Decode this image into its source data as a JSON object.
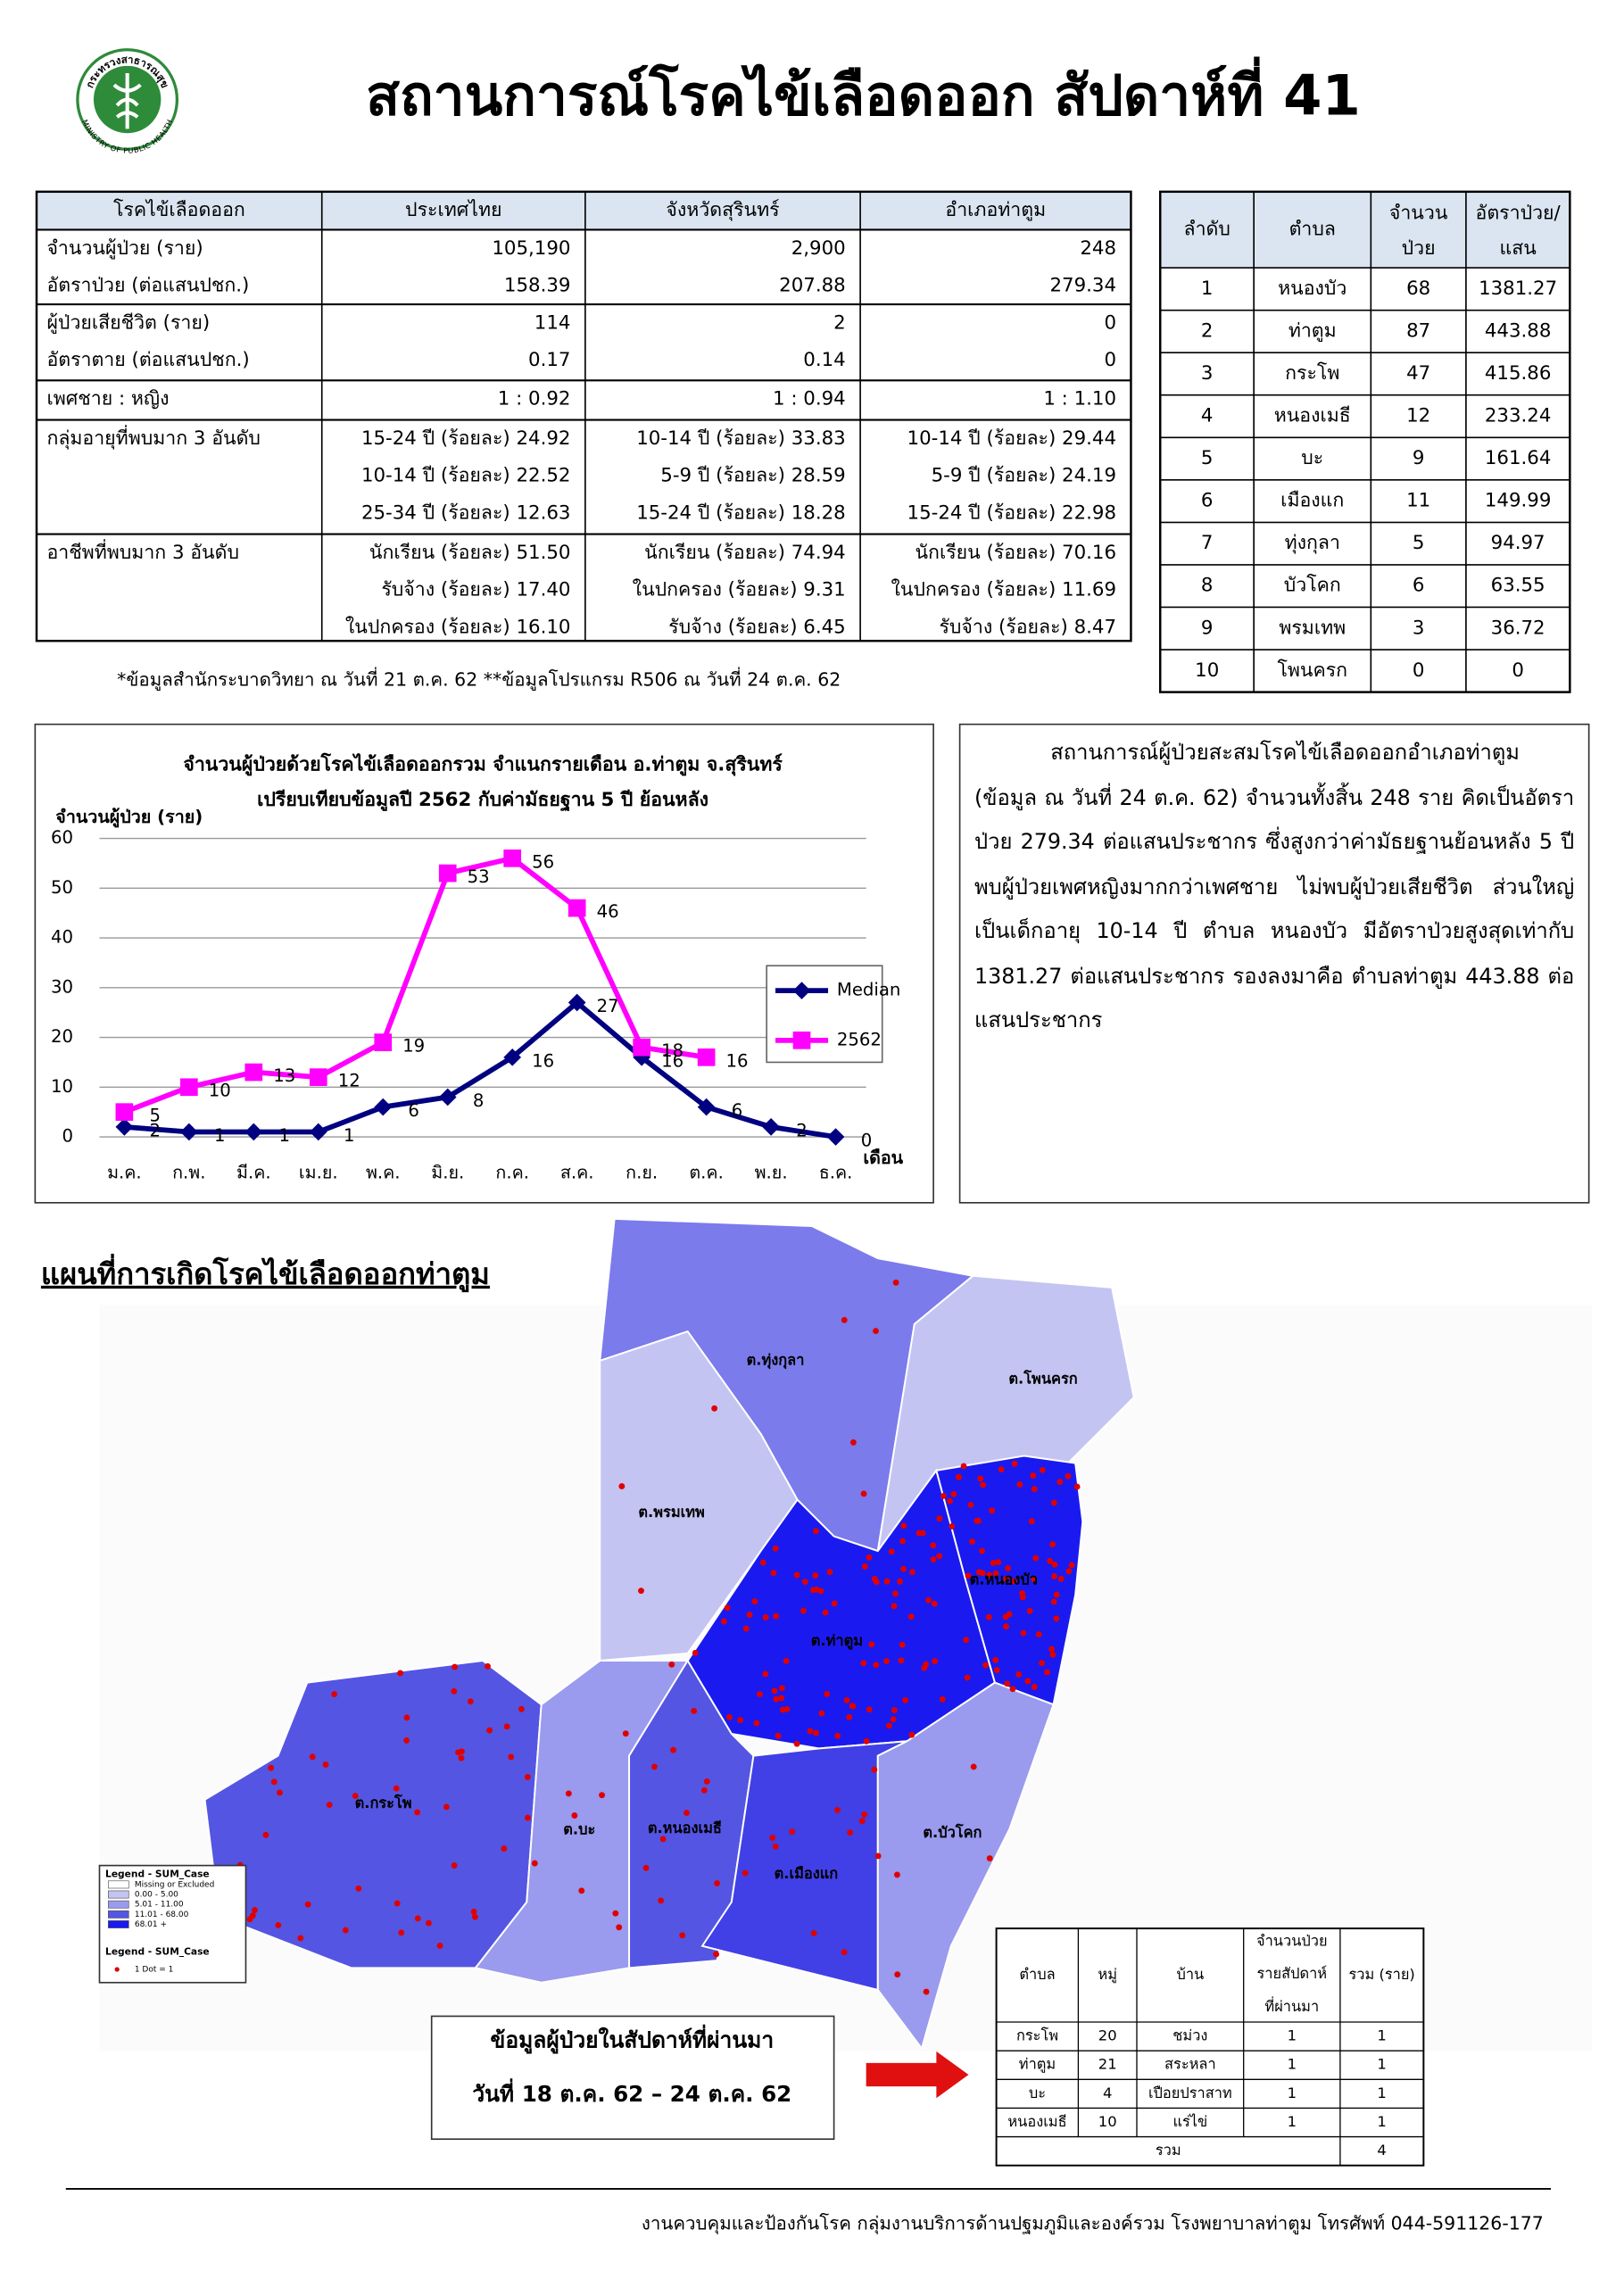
{
  "logo": {
    "top": "กระทรวงสาธารณสุข",
    "bottom": "MINISTRY OF PUBLIC HEALTH"
  },
  "header": {
    "title": "สถานการณ์โรคไข้เลือดออก สัปดาห์ที่ 41"
  },
  "summary_table": {
    "headers": [
      "โรคไข้เลือดออก",
      "ประเทศไทย",
      "จังหวัดสุรินทร์",
      "อำเภอท่าตูม"
    ],
    "rows": [
      [
        [
          "จำนวนผู้ป่วย (ราย)",
          "อัตราป่วย (ต่อแสนปชก.)"
        ],
        [
          "105,190",
          "158.39"
        ],
        [
          "2,900",
          "207.88"
        ],
        [
          "248",
          "279.34"
        ]
      ],
      [
        [
          "ผู้ป่วยเสียชีวิต (ราย)",
          "อัตราตาย (ต่อแสนปชก.)"
        ],
        [
          "114",
          "0.17"
        ],
        [
          "2",
          "0.14"
        ],
        [
          "0",
          "0"
        ]
      ],
      [
        [
          "เพศชาย : หญิง"
        ],
        [
          "1 : 0.92"
        ],
        [
          "1 : 0.94"
        ],
        [
          "1 : 1.10"
        ]
      ],
      [
        [
          "กลุ่มอายุที่พบมาก 3 อันดับ"
        ],
        [
          "15-24 ปี (ร้อยละ) 24.92",
          "10-14 ปี (ร้อยละ) 22.52",
          "25-34 ปี (ร้อยละ) 12.63"
        ],
        [
          "10-14 ปี (ร้อยละ) 33.83",
          "5-9 ปี (ร้อยละ) 28.59",
          "15-24 ปี (ร้อยละ) 18.28"
        ],
        [
          "10-14 ปี (ร้อยละ) 29.44",
          "5-9 ปี (ร้อยละ) 24.19",
          "15-24 ปี (ร้อยละ) 22.98"
        ]
      ],
      [
        [
          "อาชีพที่พบมาก 3 อันดับ"
        ],
        [
          "นักเรียน (ร้อยละ) 51.50",
          "รับจ้าง (ร้อยละ) 17.40",
          "ในปกครอง (ร้อยละ) 16.10"
        ],
        [
          "นักเรียน (ร้อยละ) 74.94",
          "ในปกครอง (ร้อยละ) 9.31",
          "รับจ้าง (ร้อยละ) 6.45"
        ],
        [
          "นักเรียน (ร้อยละ) 70.16",
          "ในปกครอง (ร้อยละ) 11.69",
          "รับจ้าง (ร้อยละ) 8.47"
        ]
      ]
    ],
    "footnote": "*ข้อมูลสำนักระบาดวิทยา ณ วันที่ 21 ต.ค. 62 **ข้อมูลโปรแกรม R506 ณ วันที่ 24 ต.ค. 62"
  },
  "rank_table": {
    "headers": [
      [
        "ลำดับ"
      ],
      [
        "ตำบล"
      ],
      [
        "จำนวน",
        "ป่วย"
      ],
      [
        "อัตราป่วย/",
        "แสน"
      ]
    ],
    "rows": [
      [
        "1",
        "หนองบัว",
        "68",
        "1381.27"
      ],
      [
        "2",
        "ท่าตูม",
        "87",
        "443.88"
      ],
      [
        "3",
        "กระโพ",
        "47",
        "415.86"
      ],
      [
        "4",
        "หนองเมธี",
        "12",
        "233.24"
      ],
      [
        "5",
        "บะ",
        "9",
        "161.64"
      ],
      [
        "6",
        "เมืองแก",
        "11",
        "149.99"
      ],
      [
        "7",
        "ทุ่งกุลา",
        "5",
        "94.97"
      ],
      [
        "8",
        "บัวโคก",
        "6",
        "63.55"
      ],
      [
        "9",
        "พรมเทพ",
        "3",
        "36.72"
      ],
      [
        "10",
        "โพนครก",
        "0",
        "0"
      ]
    ]
  },
  "chart_data": {
    "type": "line",
    "title": "จำนวนผู้ป่วยด้วยโรคไข้เลือดออกรวม จำแนกรายเดือน อ.ท่าตูม จ.สุรินทร์",
    "subtitle": "เปรียบเทียบข้อมูลปี  2562  กับค่ามัธยฐาน 5 ปี ย้อนหลัง",
    "y_label": "จำนวนผู้ป่วย (ราย)",
    "x_label": "เดือน",
    "categories": [
      "ม.ค.",
      "ก.พ.",
      "มี.ค.",
      "เม.ย.",
      "พ.ค.",
      "มิ.ย.",
      "ก.ค.",
      "ส.ค.",
      "ก.ย.",
      "ต.ค.",
      "พ.ย.",
      "ธ.ค."
    ],
    "series": [
      {
        "name": "Median",
        "color": "#000080",
        "marker": "diamond",
        "values": [
          2,
          1,
          1,
          1,
          6,
          8,
          16,
          27,
          16,
          6,
          2,
          0
        ]
      },
      {
        "name": "2562",
        "color": "#ff00ff",
        "marker": "square",
        "values": [
          5,
          10,
          13,
          12,
          19,
          53,
          56,
          46,
          18,
          16,
          null,
          null
        ]
      }
    ],
    "ylim": [
      0,
      60
    ],
    "yticks": [
      0,
      10,
      20,
      30,
      40,
      50,
      60
    ],
    "grid": true,
    "legend": "right",
    "data_labels": true
  },
  "summary_text": "สถานการณ์ผู้ป่วยสะสมโรคไข้เลือดออกอำเภอท่าตูม (ข้อมูล ณ วันที่ 24 ต.ค. 62) จำนวนทั้งสิ้น 248 ราย คิดเป็นอัตราป่วย 279.34 ต่อแสนประชากร ซึ่งสูงกว่าค่ามัธยฐานย้อนหลัง 5 ปี พบผู้ป่วยเพศหญิงมากกว่าเพศชาย ไม่พบผู้ป่วยเสียชีวิต  ส่วนใหญ่เป็นเด็กอายุ 10-14 ปี ตำบล หนองบัว มีอัตราป่วยสูงสุดเท่ากับ 1381.27 ต่อแสนประชากร รองลงมาคือ ตำบลท่าตูม 443.88 ต่อแสนประชากร",
  "map": {
    "title": "แผนที่การเกิดโรคไข้เลือดออกท่าตูม",
    "regions": [
      "ต.ทุ่งกุลา",
      "ต.โพนครก",
      "ต.พรมเทพ",
      "ต.ท่าตูม",
      "ต.หนองบัว",
      "ต.กระโพ",
      "ต.บะ",
      "ต.หนองเมธี",
      "ต.เมืองแก",
      "ต.บัวโคก"
    ],
    "legend_title": "Legend - SUM_Case",
    "legend_items": [
      "Missing or Excluded",
      "0.00 - 5.00",
      "5.01 - 11.00",
      "11.01 - 68.00",
      "68.01 +"
    ],
    "dot_legend_title": "Legend - SUM_Case",
    "dot_legend": "1 Dot = 1"
  },
  "week_box": {
    "line1": "ข้อมูลผู้ป่วยในสัปดาห์ที่ผ่านมา",
    "line2": "วันที่ 18 ต.ค. 62 – 24 ต.ค. 62"
  },
  "week_table": {
    "headers": [
      [
        "ตำบล"
      ],
      [
        "หมู่"
      ],
      [
        "บ้าน"
      ],
      [
        "จำนวนป่วย",
        "รายสัปดาห์",
        "ที่ผ่านมา"
      ],
      [
        "รวม (ราย)"
      ]
    ],
    "rows": [
      [
        "กระโพ",
        "20",
        "ชม่วง",
        "1",
        "1"
      ],
      [
        "ท่าตูม",
        "21",
        "สระหลา",
        "1",
        "1"
      ],
      [
        "บะ",
        "4",
        "เปือยปราสาท",
        "1",
        "1"
      ],
      [
        "หนองเมธี",
        "10",
        "แร่ไข่",
        "1",
        "1"
      ]
    ],
    "total": [
      "รวม",
      "4"
    ]
  },
  "footer": "งานควบคุมและป้องกันโรค กลุ่มงานบริการด้านปฐมภูมิและองค์รวม  โรงพยาบาลท่าตูม  โทรศัพท์ 044-591126-177"
}
